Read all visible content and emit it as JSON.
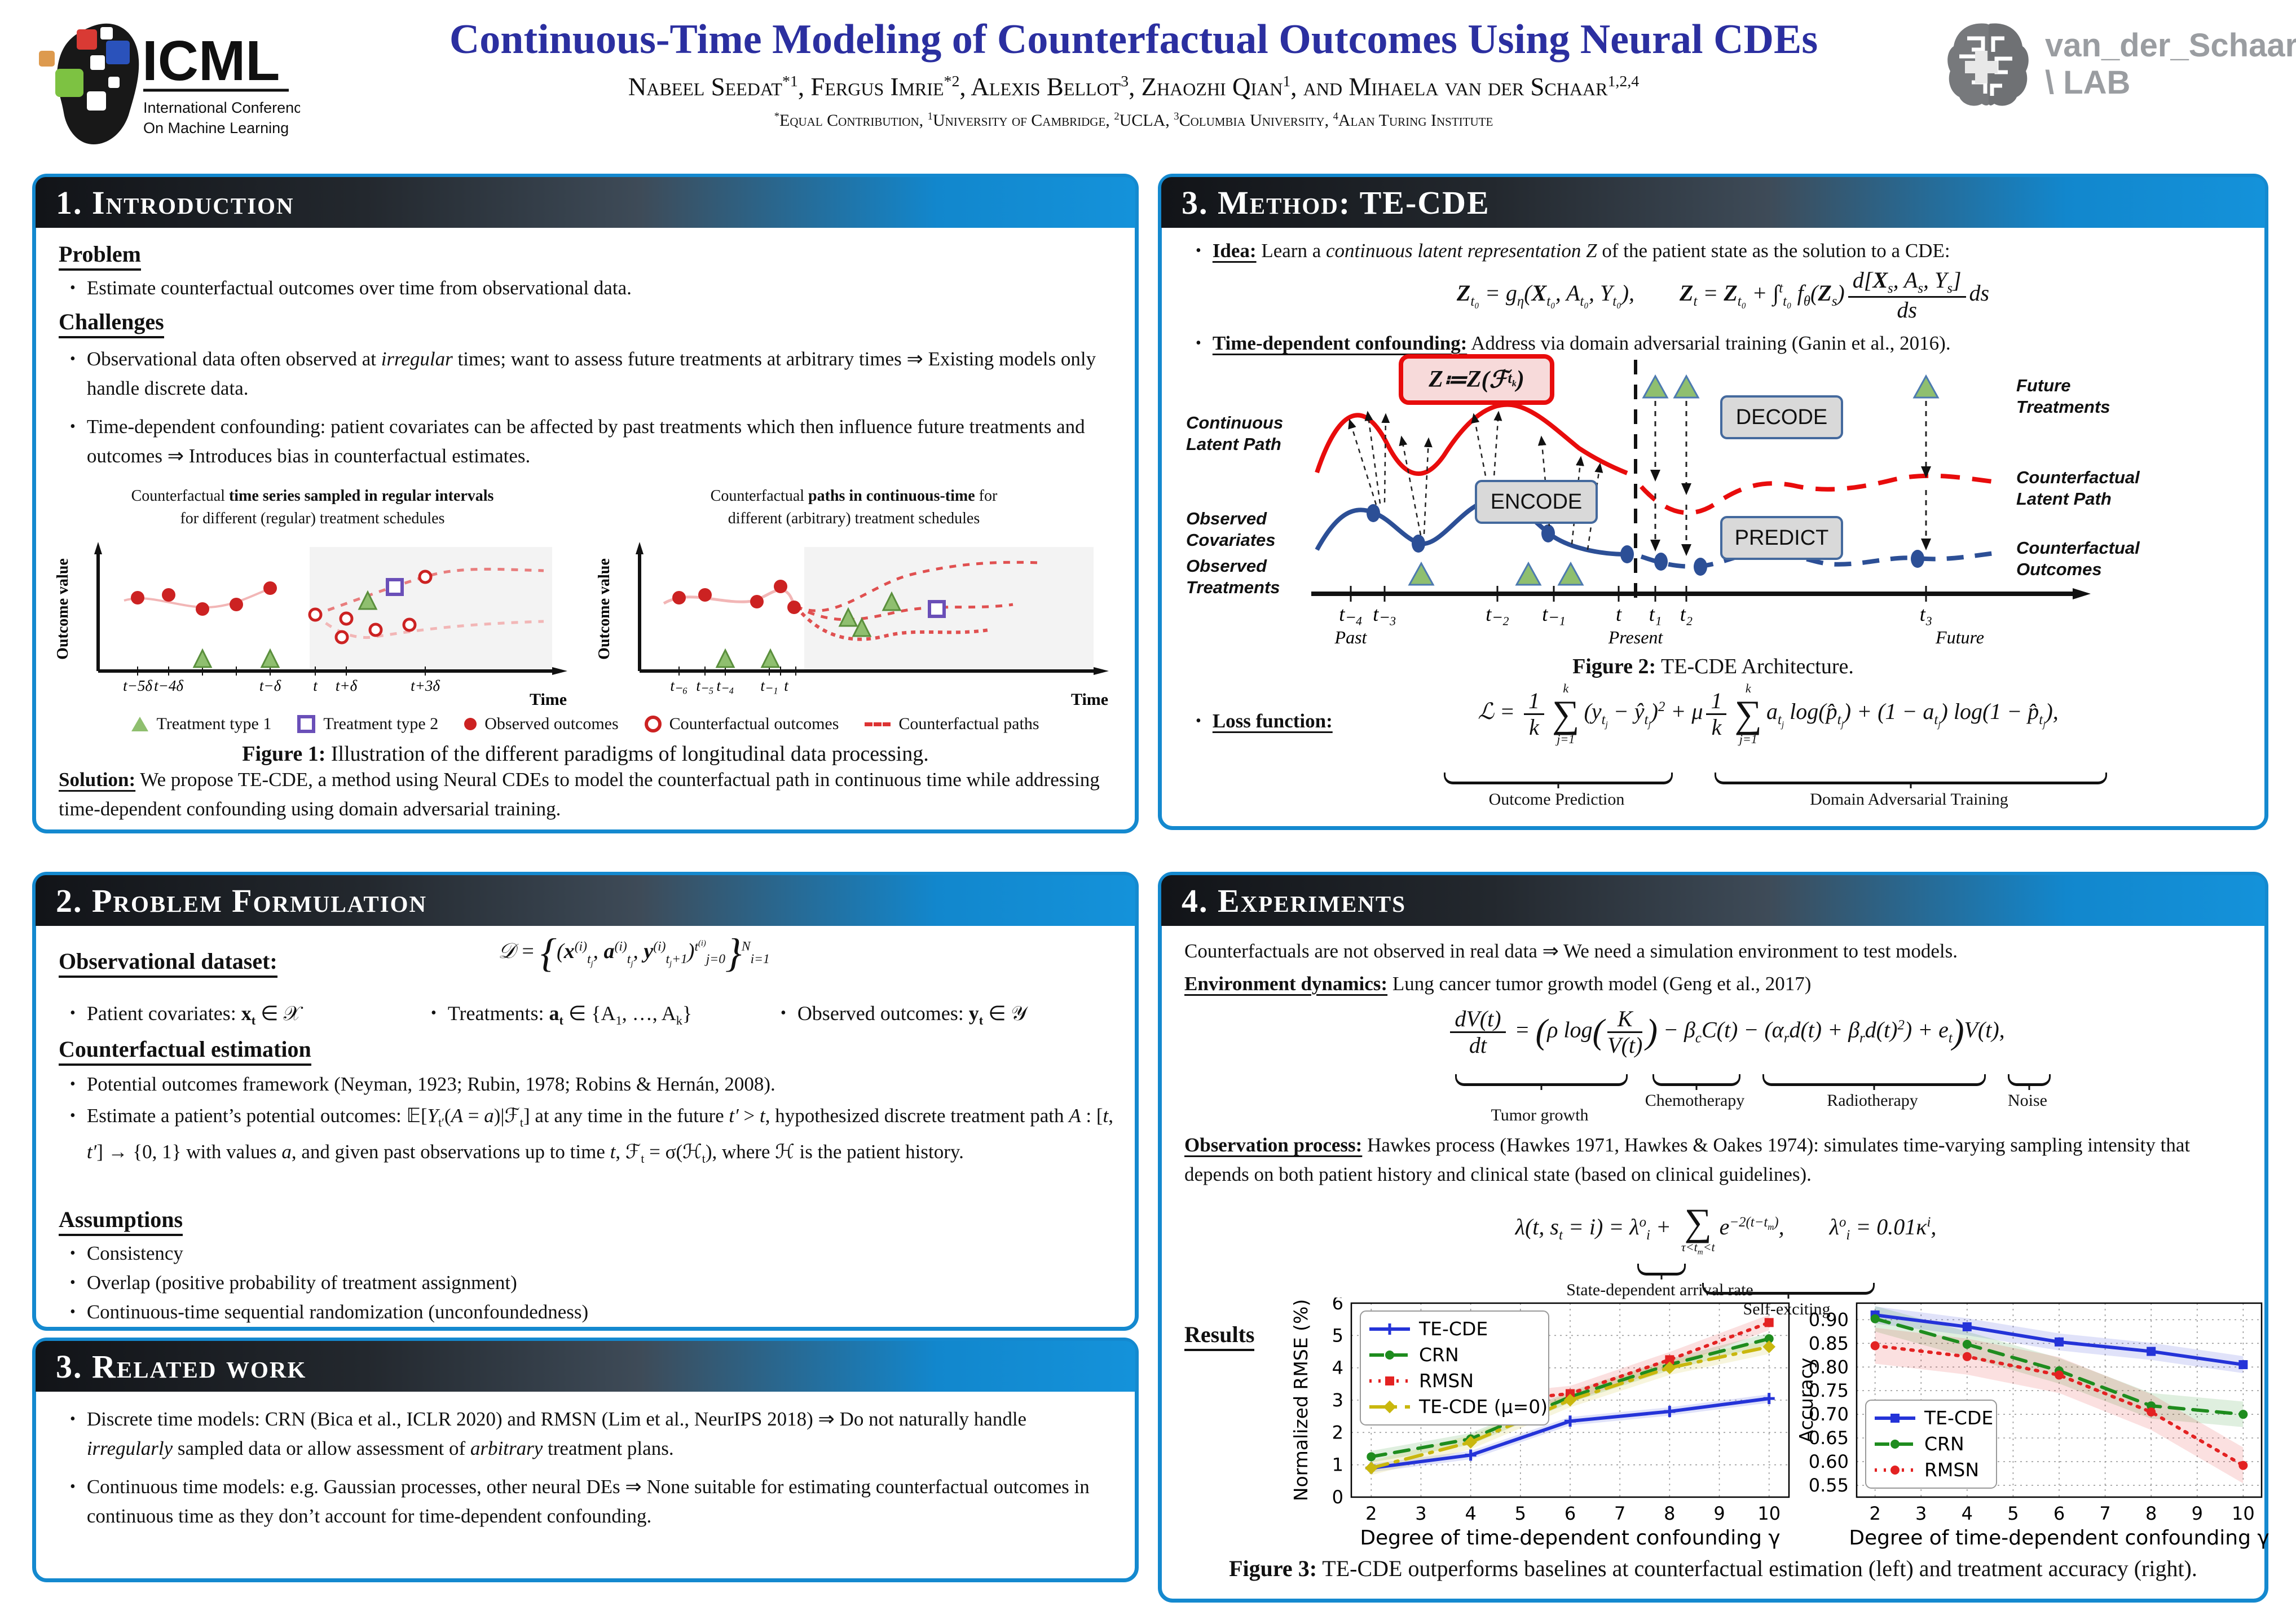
{
  "header": {
    "icml": {
      "name": "ICML",
      "sub1": "International Conference",
      "sub2": "On Machine Learning"
    },
    "title": "Continuous-Time Modeling of Counterfactual Outcomes Using Neural CDEs",
    "authors": [
      {
        "t": "Nabeel Seedat",
        "s": "*1"
      },
      {
        "t": ", Fergus Imrie",
        "s": "*2"
      },
      {
        "t": ", Alexis Bellot",
        "s": "3"
      },
      {
        "t": ", Zhaozhi Qian",
        "s": "1"
      },
      {
        "t": ", and Mihaela van der Schaar",
        "s": "1,2,4"
      }
    ],
    "affils": [
      {
        "s": "*",
        "t": "Equal Contribution, "
      },
      {
        "s": "1",
        "t": "University of Cambridge, "
      },
      {
        "s": "2",
        "t": "UCLA, "
      },
      {
        "s": "3",
        "t": "Columbia University, "
      },
      {
        "s": "4",
        "t": "Alan Turing Institute"
      }
    ],
    "lab_line1": "van_der_Schaar",
    "lab_line2": "\\ LAB"
  },
  "intro": {
    "title": "1. Introduction",
    "problem_heading": "Problem",
    "problem_b1": "Estimate counterfactual outcomes over time from observational data.",
    "challenges_heading": "Challenges",
    "c1": "Observational data often observed at <i>irregular</i> times; want to assess future treatments at arbitrary times ⇒ Existing models only handle discrete data.",
    "c2": "Time-dependent confounding: patient covariates can be affected by past treatments which then influence future treatments and outcomes ⇒ Introduces bias in counterfactual estimates.",
    "figure1": {
      "left_title1": "Counterfactual <b>time series sampled in regular intervals</b>",
      "left_title2": "for different (regular) treatment schedules",
      "right_title1": "Counterfactual <b>paths in continuous-time</b> for",
      "right_title2": "different (arbitrary) treatment schedules",
      "ylabel": "Outcome value",
      "xlabel": "Time",
      "left_ticks": [
        "t−5δ",
        "t−4δ",
        "t−δ",
        "t",
        "t+δ",
        "t+3δ"
      ],
      "right_ticks": [
        "t₋₆",
        "t₋₅",
        "t₋₄",
        "t₋₁",
        "t"
      ],
      "legend": [
        "Treatment type 1",
        "Treatment type 2",
        "Observed outcomes",
        "Counterfactual outcomes",
        "Counterfactual paths"
      ],
      "caption_label": "Figure 1:",
      "caption": " Illustration of the different paradigms of longitudinal data processing."
    },
    "solution": "<span class=lbl>Solution:</span> We propose TE-CDE, a method using Neural CDEs to model the counterfactual path in continuous time while addressing time-dependent confounding using domain adversarial training."
  },
  "problem_formulation": {
    "title": "2. Problem Formulation",
    "dataset_label": "Observational dataset:",
    "dataset_eq": "𝒟 = <span class=bigb>{</span>(<b>x</b><sup>(i)</sup><sub>t<sub>j</sub></sub>, <b>a</b><sup>(i)</sup><sub>t<sub>j</sub></sub>, <b>y</b><sup>(i)</sup><sub>t<sub>j</sub>+1</sub>)<sup>t<sup>(i)</sup></sup><sub>j=0</sub><span class=bigb>}</span><sup>N</sup><sub>i=1</sub>",
    "b1": "Patient covariates: <b>x<sub>t</sub></b> ∈ 𝒳",
    "b2": "Treatments: <b>a<sub>t</sub></b> ∈ {A<sub>1</sub>, …, A<sub>k</sub>}",
    "b3": "Observed outcomes: <b>y<sub>t</sub></b> ∈ 𝒴",
    "ce_heading": "Counterfactual estimation",
    "ce_b1": "Potential outcomes framework (Neyman, 1923; Rubin, 1978; Robins &amp; Hernán, 2008).",
    "ce_b2": "Estimate a patient’s potential outcomes: 𝔼[<i>Y</i><sub>t′</sub>(<i>A</i> = <i>a</i>)|ℱ<sub>t</sub>] at any time in the future <i>t′</i> &gt; <i>t</i>, hypothesized discrete treatment path <i>A</i> : [<i>t</i>, <i>t′</i>] → {0, 1} with values <i>a</i>, and given past observations up to time <i>t</i>, ℱ<sub>t</sub> = σ(ℋ<sub>t</sub>), where ℋ is the patient history.",
    "assumptions_heading": "Assumptions",
    "a1": "Consistency",
    "a2": "Overlap (positive probability of treatment assignment)",
    "a3": "Continuous-time sequential randomization (unconfoundedness)"
  },
  "related": {
    "title": "3. Related work",
    "b1": "Discrete time models: CRN (Bica et al., ICLR 2020) and RMSN (Lim et al., NeurIPS 2018) ⇒ Do not naturally handle <i>irregularly</i> sampled data or allow assessment of <i>arbitrary</i> treatment plans.",
    "b2": "Continuous time models: e.g. Gaussian processes, other neural DEs ⇒ None suitable for estimating counterfactual outcomes in continuous time as they don’t account for time-dependent confounding."
  },
  "method": {
    "title": "3. Method: TE-CDE",
    "idea": "<span class=lbl>Idea:</span> Learn a <i>continuous latent representation Z</i> of the patient state as the solution to a CDE:",
    "idea_eq": "<b>Z</b><sub>t₀</sub> = g<sub>η</sub>(<b>X</b><sub>t₀</sub>, A<sub>t₀</sub>, Y<sub>t₀</sub>),&emsp;&emsp;<b>Z</b><sub>t</sub> = <b>Z</b><sub>t₀</sub> + ∫<sup>t</sup><sub>t₀</sub> f<sub>θ</sub>(<b>Z</b><sub>s</sub>)<span class=frac><span class=ftop>d[<b>X</b><sub>s</sub>, A<sub>s</sub>, Y<sub>s</sub>]</span><span class=fbot>ds</span></span>ds",
    "confounding": "<span class=lbl>Time-dependent confounding:</span> Address via domain adversarial training (Ganin et al., 2016).",
    "figure2": {
      "zbox": "<b>Z</b> ≔ <b>Z</b>(ℱ<sub>t<sub>k</sub></sub>)",
      "encode": "ENCODE",
      "decode": "DECODE",
      "predict": "PREDICT",
      "label_latent1": "Continuous",
      "label_latent2": "Latent Path",
      "label_cov1": "Observed",
      "label_cov2": "Covariates",
      "label_treat1": "Observed",
      "label_treat2": "Treatments",
      "label_future1": "Future",
      "label_future2": "Treatments",
      "label_cfl1": "Counterfactual",
      "label_cfl2": "Latent Path",
      "label_cfo1": "Counterfactual",
      "label_cfo2": "Outcomes",
      "ticks": [
        "t₋₄",
        "t₋₃",
        "t₋₂",
        "t₋₁",
        "t",
        "t₁",
        "t₂",
        "t₃"
      ],
      "past": "Past",
      "present": "Present",
      "future": "Future",
      "caption_label": "Figure 2:",
      "caption": " TE-CDE Architecture."
    },
    "loss_label": "Loss function:",
    "loss_eq": "ℒ = <span class=frac><span class=ftop>1</span><span class=fbot>k</span></span><span class=sum><span class=lim>k</span><span class=sig>∑</span><span class=lim>j=1</span></span>(y<sub>t<sub>j</sub></sub> − ŷ<sub>t<sub>j</sub></sub>)<sup>2</sup> + μ<span class=frac><span class=ftop>1</span><span class=fbot>k</span></span><span class=sum><span class=lim>k</span><span class=sig>∑</span><span class=lim>j=1</span></span>a<sub>t<sub>j</sub></sub> log(p̂<sub>t<sub>j</sub></sub>) + (1 − a<sub>t<sub>j</sub></sub>) log(1 − p̂<sub>t<sub>j</sub></sub>),",
    "brace1": "Outcome Prediction",
    "brace2": "Domain Adversarial Training"
  },
  "experiments": {
    "title": "4. Experiments",
    "intro": "Counterfactuals are not observed in real data ⇒ We need a simulation environment to test models.",
    "env": "<span class=lbl>Environment dynamics:</span> Lung cancer tumor growth model (Geng et al., 2017)",
    "env_eq": "<span class=frac><span class=ftop>dV(t)</span><span class=fbot>dt</span></span> = <span class=bigp>(</span>ρ log<span class=bigp>(</span><span class=frac><span class=ftop>K</span><span class=fbot>V(t)</span></span><span class=bigp>)</span> − β<sub>c</sub>C(t) − (α<sub>r</sub>d(t) + β<sub>r</sub>d(t)<sup>2</sup>) + e<sub>t</sub><span class=bigp>)</span>V(t),",
    "env_braces": [
      "Tumor growth",
      "Chemotherapy",
      "Radiotherapy",
      "Noise"
    ],
    "obs": "<span class=lbl>Observation process:</span> Hawkes process (Hawkes 1971, Hawkes &amp; Oakes 1974): simulates time-varying sampling intensity that depends on both patient history and clinical state (based on clinical guidelines).",
    "hawkes_eq": "λ(t, s<sub>t</sub> = i) = λ<sup>o</sup><sub>i</sub> + <span class=sum><span class=sig>∑</span><span class=lim>τ&lt;t<sub>m</sub>&lt;t</span></span>e<sup>−2(t−t<sub>m</sub>)</sup>,&emsp;&emsp;λ<sup>o</sup><sub>i</sub> = 0.01κ<sup>i</sup>,",
    "hawkes_brace1": "State-dependent arrival rate",
    "hawkes_brace2": "Self-exciting",
    "results_label": "Results",
    "fig3_caption_label": "Figure 3:",
    "fig3_caption": " TE-CDE outperforms baselines at counterfactual estimation (left) and treatment accuracy (right)."
  },
  "chart_data": [
    {
      "type": "line",
      "xlabel": "Degree of time-dependent confounding γ",
      "ylabel": "Normalized RMSE (%)",
      "x": [
        2,
        4,
        6,
        8,
        10
      ],
      "xlim": [
        1.6,
        10.4
      ],
      "ylim": [
        0,
        6
      ],
      "xticks": [
        2,
        3,
        4,
        5,
        6,
        7,
        8,
        9,
        10
      ],
      "yticks": [
        0,
        1,
        2,
        3,
        4,
        5,
        6
      ],
      "ydec": 0,
      "legend_pos": "upper-left",
      "grid": true,
      "series": [
        {
          "name": "TE-CDE",
          "color": "#2433d8",
          "dash": "solid",
          "marker": "plus",
          "values": [
            0.9,
            1.3,
            2.35,
            2.65,
            3.05
          ],
          "band": 0.13
        },
        {
          "name": "CRN",
          "color": "#1e8c1e",
          "dash": "dashed",
          "marker": "circle",
          "values": [
            1.25,
            1.8,
            3.1,
            4.1,
            4.9
          ],
          "band": 0.18
        },
        {
          "name": "RMSN",
          "color": "#e32222",
          "dash": "dotted",
          "marker": "square",
          "values": [
            2.7,
            2.9,
            3.2,
            4.25,
            5.4
          ],
          "band": 0.24
        },
        {
          "name": "TE-CDE (μ=0)",
          "color": "#c9b70e",
          "dash": "dashdot",
          "marker": "diamond",
          "values": [
            0.9,
            1.7,
            3.0,
            4.0,
            4.65
          ],
          "band": 0.22
        }
      ]
    },
    {
      "type": "line",
      "xlabel": "Degree of time-dependent confounding γ",
      "ylabel": "Accuracy",
      "x": [
        2,
        4,
        6,
        8,
        10
      ],
      "xlim": [
        1.6,
        10.4
      ],
      "ylim": [
        0.525,
        0.935
      ],
      "xticks": [
        2,
        3,
        4,
        5,
        6,
        7,
        8,
        9,
        10
      ],
      "yticks": [
        0.55,
        0.6,
        0.65,
        0.7,
        0.75,
        0.8,
        0.85,
        0.9
      ],
      "ydec": 2,
      "legend_pos": "lower-left",
      "grid": true,
      "series": [
        {
          "name": "TE-CDE",
          "color": "#2433d8",
          "dash": "solid",
          "marker": "square",
          "values": [
            0.91,
            0.885,
            0.853,
            0.833,
            0.805
          ],
          "band": 0.018
        },
        {
          "name": "CRN",
          "color": "#1e8c1e",
          "dash": "dashed",
          "marker": "circle",
          "values": [
            0.902,
            0.848,
            0.792,
            0.718,
            0.7
          ],
          "band": 0.027
        },
        {
          "name": "RMSN",
          "color": "#e32222",
          "dash": "dotted",
          "marker": "circle",
          "values": [
            0.845,
            0.822,
            0.783,
            0.705,
            0.592
          ],
          "band": 0.038
        }
      ]
    }
  ]
}
